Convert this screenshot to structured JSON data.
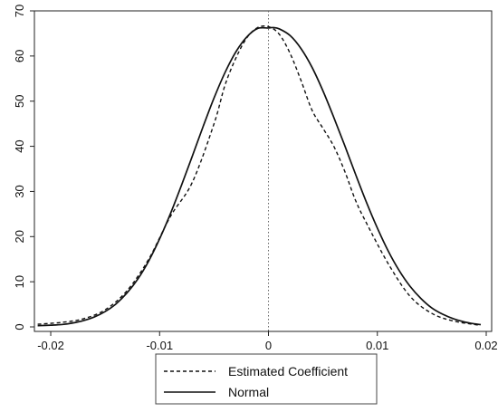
{
  "chart_data": {
    "type": "line",
    "title": "",
    "xlabel": "",
    "ylabel": "",
    "xlim": [
      -0.0215,
      0.0205
    ],
    "ylim": [
      -1,
      70
    ],
    "x_ticks": [
      -0.02,
      -0.01,
      0,
      0.01,
      0.02
    ],
    "x_tick_labels": [
      "-0.02",
      "-0.01",
      "0",
      "0.01",
      "0.02"
    ],
    "y_ticks": [
      0,
      10,
      20,
      30,
      40,
      50,
      60,
      70
    ],
    "y_tick_labels": [
      "0",
      "10",
      "20",
      "30",
      "40",
      "50",
      "60",
      "70"
    ],
    "grid": false,
    "reference_line": {
      "x": 0,
      "style": "dotted"
    },
    "legend": {
      "placement": "bottom-center",
      "entries": [
        {
          "label": "Estimated Coefficient",
          "style": "dashed"
        },
        {
          "label": "Normal",
          "style": "solid"
        }
      ]
    },
    "series": [
      {
        "name": "Estimated Coefficient",
        "style": "dashed",
        "x": [
          -0.0212,
          -0.019,
          -0.017,
          -0.015,
          -0.013,
          -0.011,
          -0.009,
          -0.007,
          -0.005,
          -0.004,
          -0.003,
          -0.002,
          -0.001,
          0,
          0.001,
          0.002,
          0.003,
          0.004,
          0.005,
          0.006,
          0.007,
          0.008,
          0.009,
          0.011,
          0.013,
          0.015,
          0.017,
          0.0193
        ],
        "y": [
          0.6,
          1.0,
          1.8,
          3.8,
          8.0,
          15.0,
          24.5,
          32.0,
          45.0,
          53.5,
          59.5,
          64.0,
          66.3,
          66.5,
          64.8,
          60.5,
          54.5,
          48.0,
          44.0,
          40.0,
          34.5,
          28.0,
          23.0,
          14.0,
          6.8,
          3.0,
          1.3,
          0.4
        ]
      },
      {
        "name": "Normal",
        "style": "solid",
        "x": [
          -0.0212,
          -0.02,
          -0.019,
          -0.018,
          -0.017,
          -0.016,
          -0.015,
          -0.014,
          -0.013,
          -0.012,
          -0.011,
          -0.01,
          -0.009,
          -0.008,
          -0.007,
          -0.006,
          -0.005,
          -0.004,
          -0.003,
          -0.002,
          -0.001,
          0,
          0.0004,
          0.001,
          0.002,
          0.003,
          0.004,
          0.005,
          0.006,
          0.007,
          0.008,
          0.009,
          0.01,
          0.011,
          0.012,
          0.013,
          0.014,
          0.015,
          0.016,
          0.017,
          0.018,
          0.019,
          0.0195
        ],
        "y": [
          0.27,
          0.38,
          0.52,
          0.86,
          1.4,
          2.2,
          3.4,
          5.1,
          7.5,
          10.6,
          14.6,
          19.5,
          25.1,
          31.3,
          37.8,
          44.4,
          50.7,
          56.3,
          60.9,
          64.2,
          66.1,
          66.2,
          66.3,
          66.0,
          64.5,
          61.6,
          57.5,
          52.3,
          46.4,
          40.2,
          33.8,
          27.6,
          21.9,
          16.8,
          12.5,
          9.0,
          6.3,
          4.2,
          2.8,
          1.8,
          1.1,
          0.65,
          0.5
        ]
      }
    ]
  }
}
